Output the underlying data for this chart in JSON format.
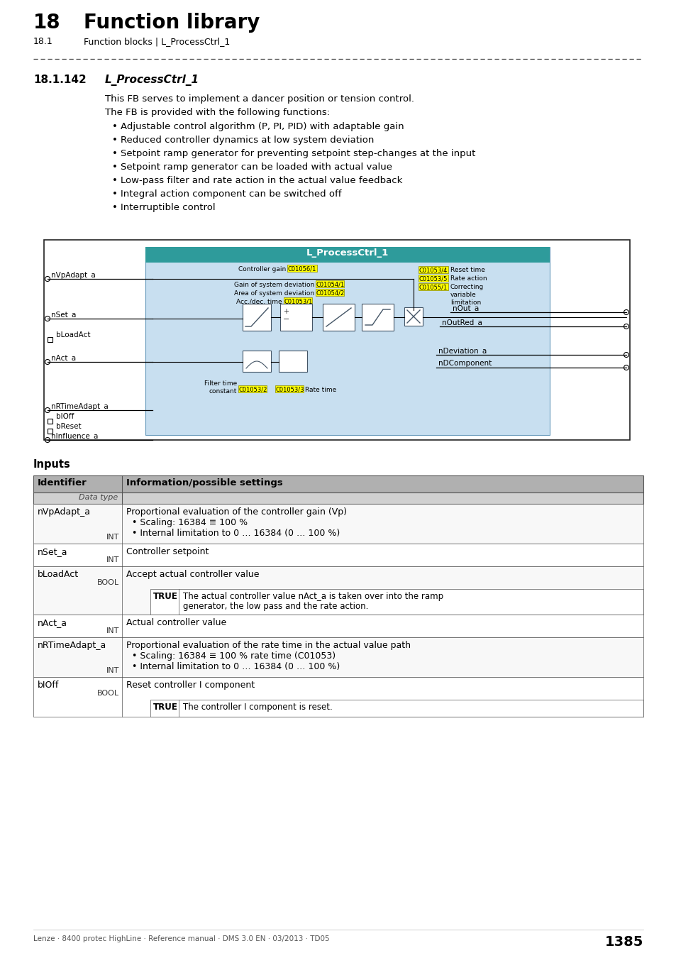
{
  "page_num": "1385",
  "chapter_num": "18",
  "chapter_title": "Function library",
  "section": "18.1",
  "section_title": "Function blocks | L_ProcessCtrl_1",
  "subsection": "18.1.142",
  "subsection_title": "L_ProcessCtrl_1",
  "intro1": "This FB serves to implement a dancer position or tension control.",
  "intro2": "The FB is provided with the following functions:",
  "bullets": [
    "Adjustable control algorithm (P, PI, PID) with adaptable gain",
    "Reduced controller dynamics at low system deviation",
    "Setpoint ramp generator for preventing setpoint step-changes at the input",
    "Setpoint ramp generator can be loaded with actual value",
    "Low-pass filter and rate action in the actual value feedback",
    "Integral action component can be switched off",
    "Interruptible control"
  ],
  "inputs_title": "Inputs",
  "table_headers": [
    "Identifier",
    "Information/possible settings"
  ],
  "table_subheader": "Data type",
  "table_rows": [
    {
      "id": "nVpAdapt_a",
      "dtype": "INT",
      "info": "Proportional evaluation of the controller gain (Vp)\n  • Scaling: 16384 ≡ 100 %\n  • Internal limitation to 0 … 16384 (0 … 100 %)",
      "sub_key": null
    },
    {
      "id": "nSet_a",
      "dtype": "INT",
      "info": "Controller setpoint",
      "sub_key": null
    },
    {
      "id": "bLoadAct",
      "dtype": "BOOL",
      "info": "Accept actual controller value",
      "sub_key": "TRUE",
      "sub_val": "The actual controller value nAct_a is taken over into the ramp\ngenerator, the low pass and the rate action."
    },
    {
      "id": "nAct_a",
      "dtype": "INT",
      "info": "Actual controller value",
      "sub_key": null
    },
    {
      "id": "nRTimeAdapt_a",
      "dtype": "INT",
      "info": "Proportional evaluation of the rate time in the actual value path\n  • Scaling: 16384 ≡ 100 % rate time (C01053)\n  • Internal limitation to 0 … 16384 (0 … 100 %)",
      "sub_key": null
    },
    {
      "id": "bIOff",
      "dtype": "BOOL",
      "info": "Reset controller I component",
      "sub_key": "TRUE",
      "sub_val": "The controller I component is reset."
    }
  ],
  "footer_left": "Lenze · 8400 protec HighLine · Reference manual · DMS 3.0 EN · 03/2013 · TD05",
  "bg_color": "#ffffff",
  "dashed_line_color": "#555555",
  "table_header_bg": "#b0b0b0",
  "table_border_color": "#555555",
  "teal_color": "#2e9b9b",
  "light_blue_bg": "#c8dff0",
  "yellow_highlight": "#ffff00"
}
